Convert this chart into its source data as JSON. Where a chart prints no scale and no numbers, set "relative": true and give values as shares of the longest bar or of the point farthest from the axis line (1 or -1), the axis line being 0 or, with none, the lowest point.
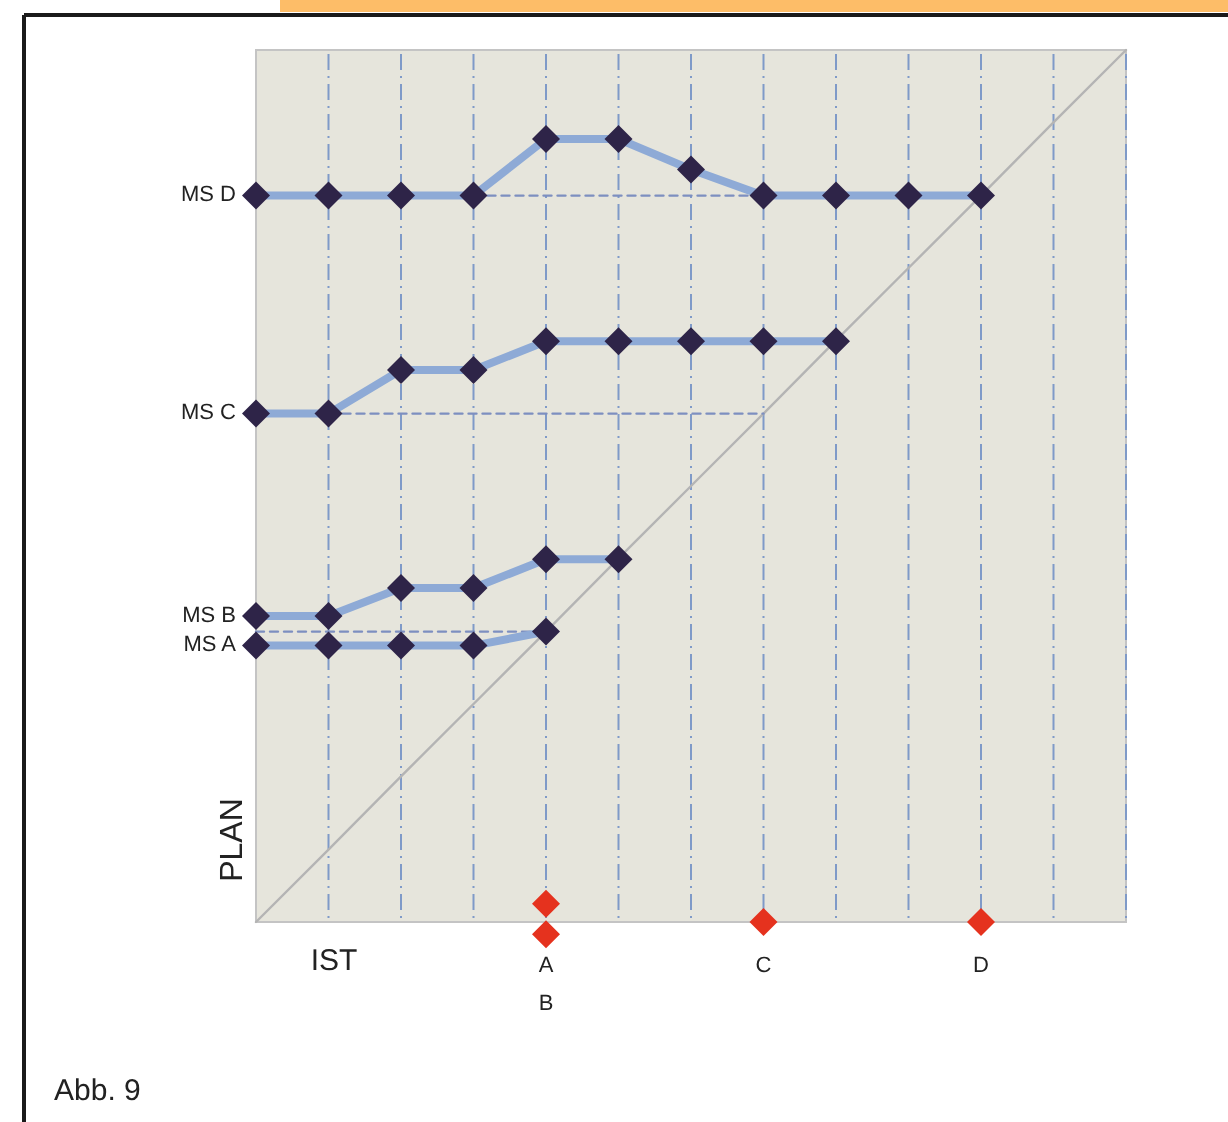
{
  "chart_data": {
    "type": "line",
    "xlabel": "IST",
    "ylabel": "PLAN",
    "relative": true,
    "grid": "x",
    "categories": [
      null,
      null,
      null,
      null,
      "A\nB",
      null,
      null,
      "C",
      null,
      null,
      "D",
      null,
      null
    ],
    "series": [
      {
        "color": "#b4b4b4",
        "marker": "none",
        "values": [
          0,
          0.083,
          0.167,
          0.25,
          0.333,
          0.417,
          0.5,
          0.583,
          0.667,
          0.75,
          0.833,
          0.917,
          1
        ]
      },
      {
        "type": "line",
        "color": "#7d8fc0",
        "marker": "none",
        "line_style": "dashed",
        "values": [
          null,
          null,
          null,
          0.833,
          0.833,
          0.833,
          0.833,
          0.833,
          null,
          null,
          null,
          null,
          null
        ]
      },
      {
        "type": "line",
        "color": "#7d8fc0",
        "marker": "none",
        "line_style": "dashed",
        "values": [
          null,
          0.583,
          0.583,
          0.583,
          0.583,
          0.583,
          0.583,
          0.583,
          null,
          null,
          null,
          null,
          null
        ]
      },
      {
        "type": "line",
        "color": "#7d8fc0",
        "marker": "none",
        "line_style": "dashed",
        "values": [
          0.333,
          0.333,
          0.333,
          0.333,
          0.333,
          null,
          null,
          null,
          null,
          null,
          null,
          null,
          null
        ]
      },
      {
        "name": "MS D",
        "color": "#2e2448",
        "marker": "diamond",
        "values": [
          0.833,
          0.833,
          0.833,
          0.833,
          0.898,
          0.898,
          0.863,
          0.833,
          0.833,
          0.833,
          0.833,
          null,
          null
        ]
      },
      {
        "name": "MS C",
        "color": "#2e2448",
        "marker": "diamond",
        "values": [
          0.583,
          0.583,
          0.633,
          0.633,
          0.666,
          0.666,
          0.666,
          0.666,
          0.666,
          null,
          null,
          null,
          null
        ]
      },
      {
        "name": "MS B",
        "color": "#2e2448",
        "marker": "diamond",
        "values": [
          0.351,
          0.351,
          0.383,
          0.383,
          0.416,
          0.416,
          null,
          null,
          null,
          null,
          null,
          null,
          null
        ]
      },
      {
        "name": "MS A",
        "color": "#2e2448",
        "marker": "diamond",
        "values": [
          0.317,
          0.317,
          0.317,
          0.317,
          0.333,
          null,
          null,
          null,
          null,
          null,
          null,
          null,
          null
        ]
      },
      {
        "type": "scatter",
        "color": "#e5321e",
        "marker": "diamond",
        "x": [
          "A\nB",
          "A\nB",
          "C",
          "D"
        ],
        "values": [
          0.021,
          -0.014,
          0,
          0
        ]
      }
    ],
    "annotations": [
      "Abb. 9"
    ]
  }
}
